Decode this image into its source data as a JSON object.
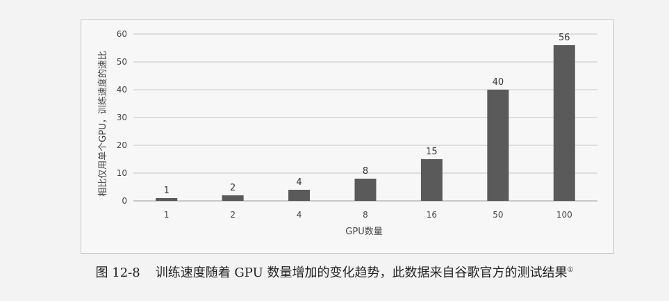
{
  "chart_data": {
    "type": "bar",
    "categories": [
      "1",
      "2",
      "4",
      "8",
      "16",
      "50",
      "100"
    ],
    "values": [
      1,
      2,
      4,
      8,
      15,
      40,
      56
    ],
    "xlabel": "GPU数量",
    "ylabel": "相比仅用单个GPU，训练速度的速比",
    "ylim": [
      0,
      60
    ],
    "yticks": [
      0,
      10,
      20,
      30,
      40,
      50,
      60
    ],
    "grid": true,
    "bar_color": "#5a5a5a",
    "data_labels": true
  },
  "caption": {
    "number": "图 12-8",
    "text": "训练速度随着 GPU 数量增加的变化趋势，此数据来自谷歌官方的测试结果",
    "footnote": "①"
  }
}
